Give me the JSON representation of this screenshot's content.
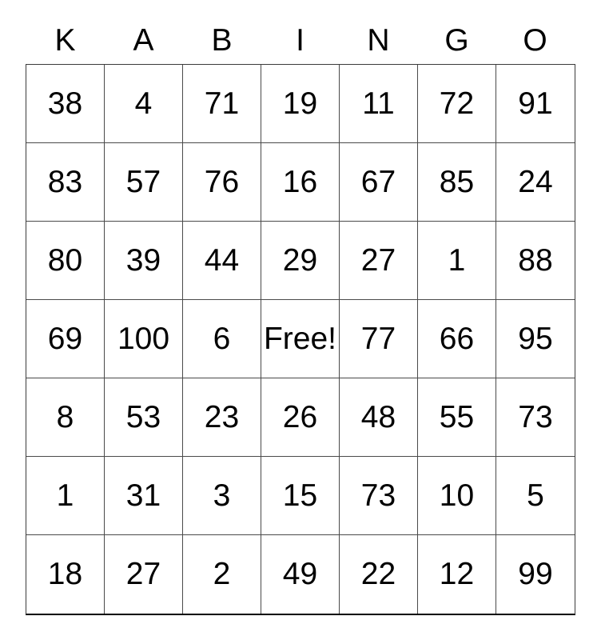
{
  "card": {
    "header": {
      "letters": [
        "K",
        "A",
        "B",
        "I",
        "N",
        "G",
        "O"
      ]
    },
    "grid": {
      "rows": [
        [
          "38",
          "4",
          "71",
          "19",
          "11",
          "72",
          "91"
        ],
        [
          "83",
          "57",
          "76",
          "16",
          "67",
          "85",
          "24"
        ],
        [
          "80",
          "39",
          "44",
          "29",
          "27",
          "1",
          "88"
        ],
        [
          "69",
          "100",
          "6",
          "Free!",
          "77",
          "66",
          "95"
        ],
        [
          "8",
          "53",
          "23",
          "26",
          "48",
          "55",
          "73"
        ],
        [
          "1",
          "31",
          "3",
          "15",
          "73",
          "10",
          "5"
        ],
        [
          "18",
          "27",
          "2",
          "49",
          "22",
          "12",
          "99"
        ]
      ],
      "free_cell": {
        "row": 3,
        "col": 3,
        "label": "Free!"
      }
    },
    "colors": {
      "background": "#ffffff",
      "text": "#000000",
      "inner_border": "#4a4a4a",
      "outer_border": "#000000"
    }
  }
}
